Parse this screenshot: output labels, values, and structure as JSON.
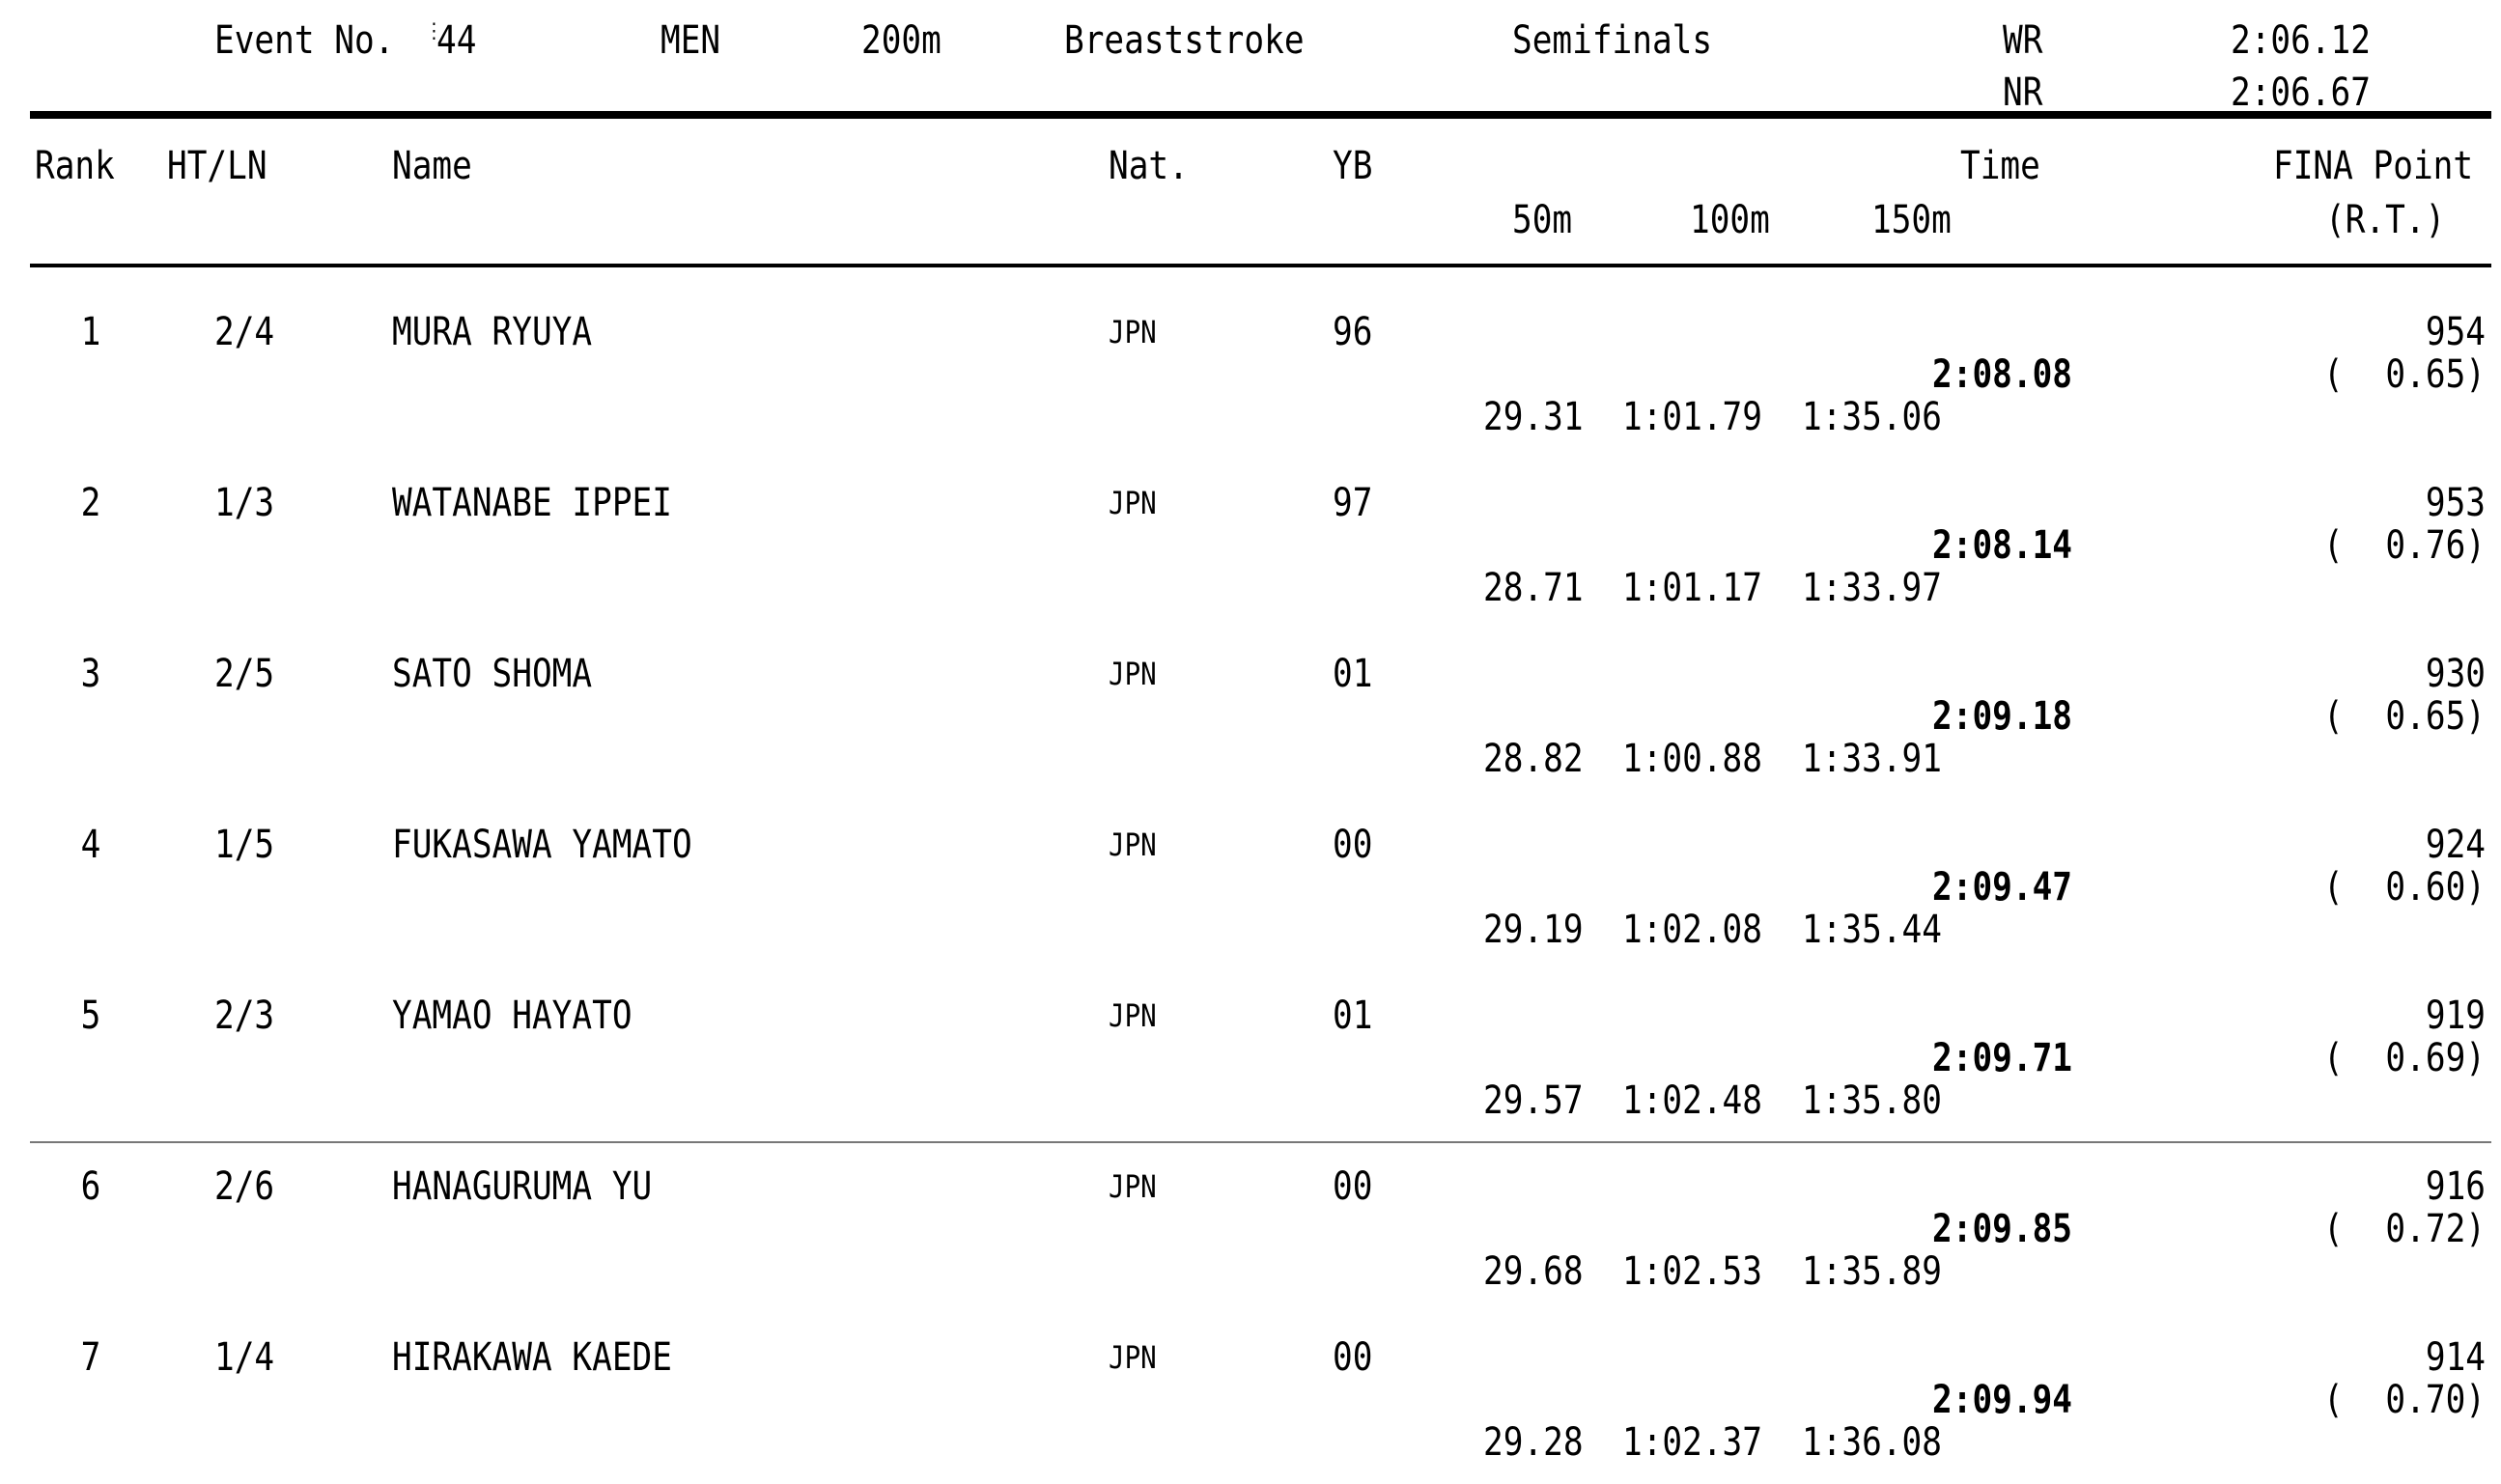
{
  "event": {
    "label": "Event No.",
    "number": "44",
    "gender": "MEN",
    "distance": "200m",
    "stroke": "Breaststroke",
    "round": "Semifinals",
    "wr_label": "WR",
    "wr_time": "2:06.12",
    "nr_label": "NR",
    "nr_time": "2:06.67"
  },
  "columns": {
    "rank": "Rank",
    "heat_lane": "HT/LN",
    "name": "Name",
    "nat": "Nat.",
    "yb": "YB",
    "time": "Time",
    "split_50": "50m",
    "split_100": "100m",
    "split_150": "150m",
    "fina_point": "FINA Point",
    "reaction": "(R.T.)"
  },
  "rows": [
    {
      "rank": "1",
      "ht_ln": "2/4",
      "name": "MURA RYUYA",
      "nat": "JPN",
      "yb": "96",
      "time": "2:08.08",
      "s50": "29.31",
      "s100": "1:01.79",
      "s150": "1:35.06",
      "points": "954",
      "rt": "0.65"
    },
    {
      "rank": "2",
      "ht_ln": "1/3",
      "name": "WATANABE IPPEI",
      "nat": "JPN",
      "yb": "97",
      "time": "2:08.14",
      "s50": "28.71",
      "s100": "1:01.17",
      "s150": "1:33.97",
      "points": "953",
      "rt": "0.76"
    },
    {
      "rank": "3",
      "ht_ln": "2/5",
      "name": "SATO SHOMA",
      "nat": "JPN",
      "yb": "01",
      "time": "2:09.18",
      "s50": "28.82",
      "s100": "1:00.88",
      "s150": "1:33.91",
      "points": "930",
      "rt": "0.65"
    },
    {
      "rank": "4",
      "ht_ln": "1/5",
      "name": "FUKASAWA YAMATO",
      "nat": "JPN",
      "yb": "00",
      "time": "2:09.47",
      "s50": "29.19",
      "s100": "1:02.08",
      "s150": "1:35.44",
      "points": "924",
      "rt": "0.60"
    },
    {
      "rank": "5",
      "ht_ln": "2/3",
      "name": "YAMAO HAYATO",
      "nat": "JPN",
      "yb": "01",
      "time": "2:09.71",
      "s50": "29.57",
      "s100": "1:02.48",
      "s150": "1:35.80",
      "points": "919",
      "rt": "0.69"
    },
    {
      "rank": "6",
      "ht_ln": "2/6",
      "name": "HANAGURUMA YU",
      "nat": "JPN",
      "yb": "00",
      "time": "2:09.85",
      "s50": "29.68",
      "s100": "1:02.53",
      "s150": "1:35.89",
      "points": "916",
      "rt": "0.72"
    },
    {
      "rank": "7",
      "ht_ln": "1/4",
      "name": "HIRAKAWA KAEDE",
      "nat": "JPN",
      "yb": "00",
      "time": "2:09.94",
      "s50": "29.28",
      "s100": "1:02.37",
      "s150": "1:36.08",
      "points": "914",
      "rt": "0.70"
    }
  ]
}
